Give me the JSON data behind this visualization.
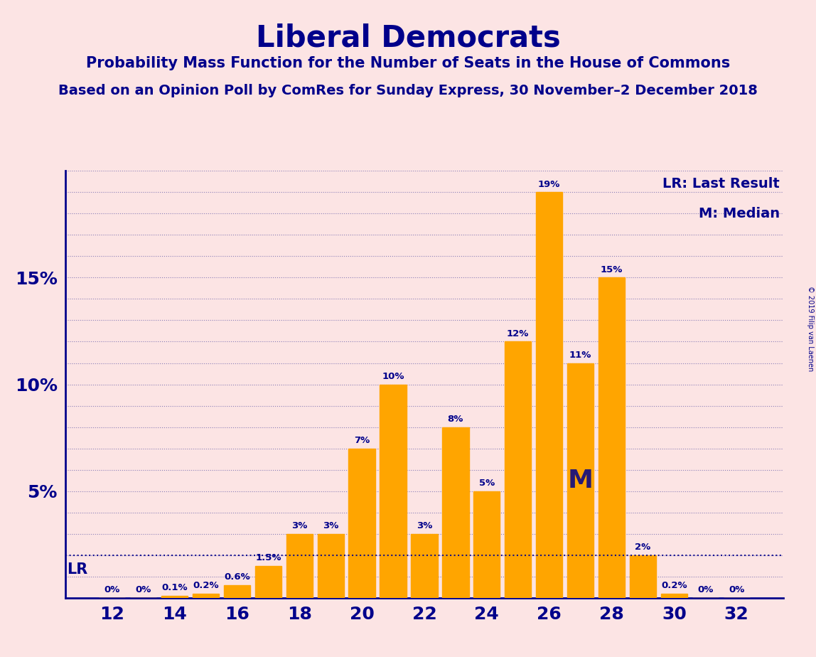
{
  "title": "Liberal Democrats",
  "subtitle1": "Probability Mass Function for the Number of Seats in the House of Commons",
  "subtitle2": "Based on an Opinion Poll by ComRes for Sunday Express, 30 November–2 December 2018",
  "copyright": "© 2019 Filip van Laenen",
  "background_color": "#fce4e4",
  "bar_color": "#FFA500",
  "title_color": "#00008B",
  "grid_color": "#1a1a8c",
  "categories": [
    12,
    13,
    14,
    15,
    16,
    17,
    18,
    19,
    20,
    21,
    22,
    23,
    24,
    25,
    26,
    27,
    28,
    29,
    30,
    31,
    32
  ],
  "values": [
    0.0,
    0.0,
    0.1,
    0.2,
    0.6,
    1.5,
    3.0,
    3.0,
    7.0,
    10.0,
    3.0,
    8.0,
    5.0,
    12.0,
    19.0,
    11.0,
    15.0,
    2.0,
    0.2,
    0.0,
    0.0
  ],
  "labels": [
    "0%",
    "0%",
    "0.1%",
    "0.2%",
    "0.6%",
    "1.5%",
    "3%",
    "3%",
    "7%",
    "10%",
    "3%",
    "8%",
    "5%",
    "12%",
    "19%",
    "11%",
    "15%",
    "2%",
    "0.2%",
    "0%",
    "0%"
  ],
  "ylim": [
    0,
    20
  ],
  "yticks": [
    0,
    5,
    10,
    15
  ],
  "ytick_labels": [
    "",
    "5%",
    "10%",
    "15%"
  ],
  "lr_value": 2.0,
  "median_x": 26,
  "median_y": 5.5,
  "xtick_positions": [
    12,
    14,
    16,
    18,
    20,
    22,
    24,
    26,
    28,
    30,
    32
  ],
  "legend_lr": "LR: Last Result",
  "legend_m": "M: Median",
  "label_threshold": 0.05
}
